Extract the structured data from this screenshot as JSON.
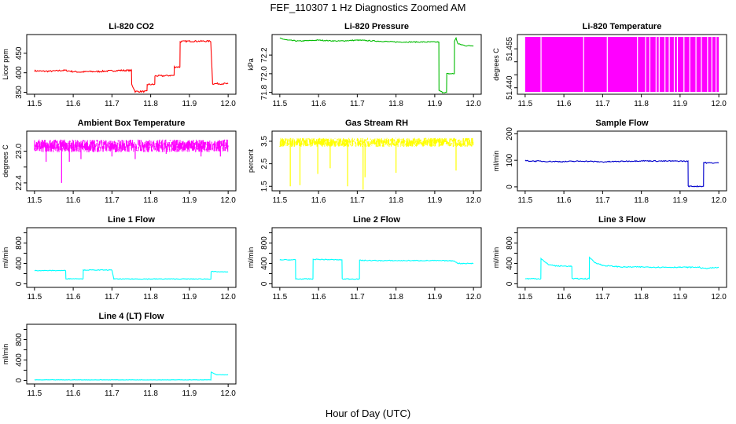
{
  "main_title": "FEF_110307  1 Hz Diagnostics Zoomed AM",
  "x_axis_label": "Hour of Day (UTC)",
  "chart_data": [
    {
      "type": "line",
      "title": "Li-820 CO2",
      "ylabel": "Licor ppm",
      "color": "#ff0000",
      "xlim": [
        11.48,
        12.02
      ],
      "ylim": [
        345,
        498
      ],
      "yticks": [
        350,
        400,
        450
      ],
      "yticklabels": [
        "350",
        "400",
        "450"
      ],
      "x": [
        11.5,
        11.52,
        11.54,
        11.56,
        11.57,
        11.58,
        11.6,
        11.62,
        11.64,
        11.66,
        11.68,
        11.7,
        11.72,
        11.75,
        11.751,
        11.76,
        11.78,
        11.79,
        11.791,
        11.8,
        11.81,
        11.811,
        11.83,
        11.85,
        11.86,
        11.861,
        11.875,
        11.876,
        11.9,
        11.93,
        11.955,
        11.96,
        11.97,
        12.0
      ],
      "y": [
        405,
        404,
        404,
        405,
        406,
        406,
        403,
        402,
        403,
        403,
        404,
        405,
        406,
        406,
        370,
        352,
        352,
        352,
        370,
        370,
        370,
        392,
        392,
        393,
        393,
        415,
        415,
        480,
        481,
        481,
        481,
        372,
        372,
        372
      ],
      "noise": 2
    },
    {
      "type": "line",
      "title": "Li-820 Pressure",
      "ylabel": "kPa",
      "color": "#00bb00",
      "xlim": [
        11.48,
        12.02
      ],
      "ylim": [
        71.78,
        72.42
      ],
      "yticks": [
        71.8,
        72.0,
        72.2
      ],
      "yticklabels": [
        "71.8",
        "72.0",
        "72.2"
      ],
      "x": [
        11.5,
        11.52,
        11.55,
        11.6,
        11.65,
        11.7,
        11.75,
        11.8,
        11.85,
        11.9,
        11.91,
        11.911,
        11.92,
        11.93,
        11.931,
        11.95,
        11.951,
        11.955,
        11.96,
        11.97,
        11.98,
        12.0
      ],
      "y": [
        72.38,
        72.36,
        72.35,
        72.36,
        72.35,
        72.36,
        72.35,
        72.34,
        72.34,
        72.34,
        72.34,
        71.82,
        71.8,
        71.8,
        72.0,
        72.0,
        72.35,
        72.38,
        72.32,
        72.31,
        72.3,
        72.3
      ],
      "noise": 0.005
    },
    {
      "type": "bars",
      "title": "Li-820 Temperature",
      "ylabel": "degrees C",
      "color": "#ff00ff",
      "xlim": [
        11.48,
        12.02
      ],
      "ylim": [
        51.4375,
        51.4605
      ],
      "yticks": [
        51.44,
        51.445,
        51.45,
        51.455
      ],
      "yticklabels": [
        "51.440",
        "",
        "",
        "51.455"
      ],
      "x_start": 11.5,
      "x_end": 12.0,
      "gaps": [
        11.541,
        11.651,
        11.712,
        11.79,
        11.811,
        11.822,
        11.838,
        11.846,
        11.861,
        11.872,
        11.885,
        11.893,
        11.91,
        11.925,
        11.941,
        11.955,
        11.971,
        11.982,
        11.993
      ]
    },
    {
      "type": "band",
      "title": "Ambient Box Temperature",
      "ylabel": "degrees C",
      "color": "#ff00ff",
      "xlim": [
        11.48,
        12.02
      ],
      "ylim": [
        22.25,
        23.38
      ],
      "yticks": [
        22.4,
        22.7,
        23.0
      ],
      "yticklabels": [
        "22.4",
        "",
        "23.0"
      ],
      "x_start": 11.5,
      "x_end": 12.0,
      "center": 23.1,
      "spread": 0.12,
      "spikes": [
        [
          11.57,
          22.4
        ],
        [
          11.53,
          22.8
        ],
        [
          11.62,
          22.85
        ],
        [
          11.59,
          22.8
        ],
        [
          11.7,
          22.9
        ],
        [
          11.76,
          22.85
        ],
        [
          11.84,
          22.95
        ],
        [
          11.93,
          22.9
        ],
        [
          11.98,
          22.9
        ]
      ]
    },
    {
      "type": "band",
      "title": "Gas Stream RH",
      "ylabel": "percent",
      "color": "#ffff00",
      "xlim": [
        11.48,
        12.02
      ],
      "ylim": [
        1.3,
        3.95
      ],
      "yticks": [
        1.5,
        2.5,
        3.5
      ],
      "yticklabels": [
        "1.5",
        "2.5",
        "3.5"
      ],
      "x_start": 11.5,
      "x_end": 12.0,
      "center": 3.45,
      "spread": 0.2,
      "spikes": [
        [
          11.527,
          1.5
        ],
        [
          11.552,
          1.55
        ],
        [
          11.598,
          2.05
        ],
        [
          11.63,
          2.3
        ],
        [
          11.675,
          1.5
        ],
        [
          11.715,
          1.35
        ],
        [
          11.72,
          1.9
        ],
        [
          11.8,
          2.1
        ],
        [
          11.955,
          2.2
        ]
      ]
    },
    {
      "type": "line",
      "title": "Sample Flow",
      "ylabel": "ml/min",
      "color": "#0000cc",
      "xlim": [
        11.48,
        12.02
      ],
      "ylim": [
        -15,
        210
      ],
      "yticks": [
        0,
        100,
        200
      ],
      "yticklabels": [
        "0",
        "100",
        "200"
      ],
      "x": [
        11.5,
        11.55,
        11.6,
        11.65,
        11.7,
        11.75,
        11.8,
        11.85,
        11.9,
        11.92,
        11.921,
        11.96,
        11.961,
        11.97,
        12.0
      ],
      "y": [
        98,
        96,
        95,
        97,
        94,
        96,
        98,
        97,
        97,
        96,
        2,
        2,
        92,
        90,
        90
      ],
      "noise": 2
    },
    {
      "type": "line",
      "title": "Line 1 Flow",
      "ylabel": "ml/min",
      "color": "#00ffff",
      "xlim": [
        11.48,
        12.02
      ],
      "ylim": [
        -70,
        1100
      ],
      "yticks": [
        0,
        200,
        400,
        600,
        800,
        1000
      ],
      "yticklabels": [
        "0",
        "",
        "400",
        "",
        "800",
        ""
      ],
      "x": [
        11.5,
        11.58,
        11.581,
        11.625,
        11.626,
        11.7,
        11.705,
        11.75,
        11.8,
        11.85,
        11.9,
        11.95,
        11.955,
        11.956,
        12.0
      ],
      "y": [
        260,
        260,
        100,
        100,
        270,
        270,
        95,
        95,
        95,
        95,
        95,
        95,
        95,
        240,
        230
      ],
      "noise": 6
    },
    {
      "type": "line",
      "title": "Line 2 Flow",
      "ylabel": "ml/min",
      "color": "#00ffff",
      "xlim": [
        11.48,
        12.02
      ],
      "ylim": [
        -70,
        1100
      ],
      "yticks": [
        0,
        200,
        400,
        600,
        800,
        1000
      ],
      "yticklabels": [
        "0",
        "",
        "400",
        "",
        "800",
        ""
      ],
      "x": [
        11.5,
        11.54,
        11.541,
        11.585,
        11.586,
        11.66,
        11.661,
        11.705,
        11.706,
        11.75,
        11.8,
        11.85,
        11.9,
        11.95,
        11.96,
        12.0
      ],
      "y": [
        470,
        470,
        95,
        95,
        480,
        470,
        95,
        95,
        460,
        455,
        455,
        455,
        455,
        450,
        400,
        400
      ],
      "noise": 8
    },
    {
      "type": "line",
      "title": "Line 3 Flow",
      "ylabel": "ml/min",
      "color": "#00ffff",
      "xlim": [
        11.48,
        12.02
      ],
      "ylim": [
        -70,
        1100
      ],
      "yticks": [
        0,
        200,
        400,
        600,
        800,
        1000
      ],
      "yticklabels": [
        "0",
        "",
        "400",
        "",
        "800",
        ""
      ],
      "x": [
        11.5,
        11.54,
        11.541,
        11.55,
        11.56,
        11.58,
        11.62,
        11.621,
        11.665,
        11.666,
        11.68,
        11.7,
        11.75,
        11.8,
        11.85,
        11.9,
        11.95,
        11.96,
        12.0
      ],
      "y": [
        100,
        100,
        500,
        430,
        380,
        350,
        345,
        100,
        100,
        520,
        420,
        360,
        330,
        330,
        325,
        325,
        325,
        300,
        320
      ],
      "noise": 10
    },
    {
      "type": "line",
      "title": "Line 4 (LT) Flow",
      "ylabel": "ml/min",
      "color": "#00ffff",
      "xlim": [
        11.48,
        12.02
      ],
      "ylim": [
        -70,
        1100
      ],
      "yticks": [
        0,
        200,
        400,
        600,
        800,
        1000
      ],
      "yticklabels": [
        "0",
        "",
        "400",
        "",
        "800",
        ""
      ],
      "x": [
        11.5,
        11.6,
        11.7,
        11.8,
        11.9,
        11.955,
        11.956,
        11.97,
        12.0
      ],
      "y": [
        10,
        10,
        10,
        10,
        10,
        10,
        160,
        110,
        110
      ],
      "noise": 3
    }
  ],
  "x_ticks": [
    11.5,
    11.6,
    11.7,
    11.8,
    11.9,
    12.0
  ],
  "x_ticklabels": [
    "11.5",
    "11.6",
    "11.7",
    "11.8",
    "11.9",
    "12.0"
  ]
}
